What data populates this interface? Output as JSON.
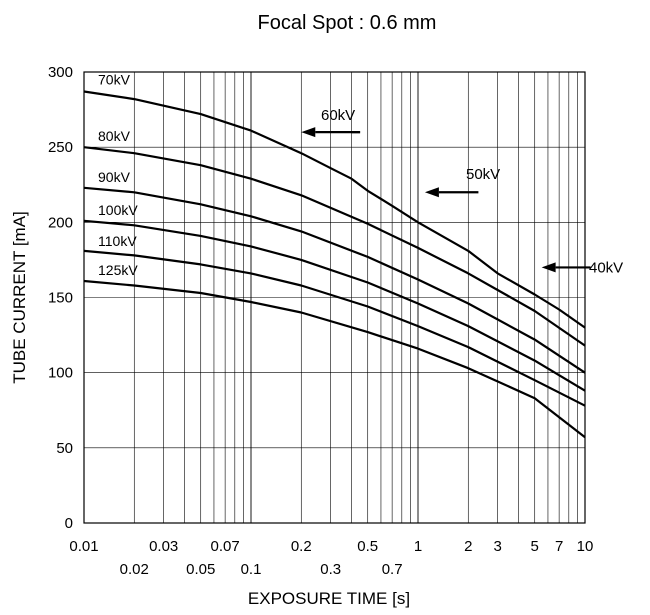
{
  "chart_data": {
    "type": "line",
    "title": "Focal Spot : 0.6 mm",
    "xlabel": "EXPOSURE TIME  [s]",
    "ylabel": "TUBE CURRENT [mA]",
    "x_scale": "log",
    "xlim": [
      0.01,
      10
    ],
    "ylim": [
      0,
      300
    ],
    "grid": true,
    "x_tick_labels_upper": [
      "0.01",
      "0.03",
      "0.07",
      "0.2",
      "0.5",
      "1",
      "2",
      "3",
      "5",
      "7",
      "10"
    ],
    "x_tick_labels_lower": [
      "0.02",
      "0.05",
      "0.1",
      "0.3",
      "0.7"
    ],
    "y_tick_labels": [
      "0",
      "50",
      "100",
      "150",
      "200",
      "250",
      "300"
    ],
    "series": [
      {
        "name": "70kV",
        "x": [
          0.01,
          0.02,
          0.05,
          0.1,
          0.2,
          0.3,
          0.4
        ],
        "y": [
          287,
          282,
          272,
          261,
          246,
          236,
          229
        ]
      },
      {
        "name": "60kV",
        "x": [
          0.4,
          0.5,
          0.7,
          1,
          2
        ],
        "y": [
          229,
          221,
          211,
          200,
          181
        ]
      },
      {
        "name": "50kV",
        "x": [
          2,
          3,
          5,
          7,
          10
        ],
        "y": [
          181,
          166,
          152,
          142,
          130
        ]
      },
      {
        "name": "40kV",
        "x": [
          10
        ],
        "y": [
          130
        ]
      },
      {
        "name": "80kV",
        "x": [
          0.01,
          0.02,
          0.05,
          0.1,
          0.2,
          0.5,
          1,
          2,
          5,
          10
        ],
        "y": [
          250,
          246,
          238,
          229,
          218,
          199,
          183,
          166,
          141,
          118
        ]
      },
      {
        "name": "90kV",
        "x": [
          0.01,
          0.02,
          0.05,
          0.1,
          0.2,
          0.5,
          1,
          2,
          5,
          10
        ],
        "y": [
          223,
          220,
          212,
          204,
          194,
          177,
          162,
          146,
          122,
          100
        ]
      },
      {
        "name": "100kV",
        "x": [
          0.01,
          0.02,
          0.05,
          0.1,
          0.2,
          0.5,
          1,
          2,
          5,
          10
        ],
        "y": [
          201,
          198,
          191,
          184,
          175,
          160,
          146,
          131,
          108,
          88
        ]
      },
      {
        "name": "110kV",
        "x": [
          0.01,
          0.02,
          0.05,
          0.1,
          0.2,
          0.5,
          1,
          2,
          5,
          10
        ],
        "y": [
          181,
          178,
          172,
          166,
          158,
          144,
          131,
          117,
          95,
          78
        ]
      },
      {
        "name": "125kV",
        "x": [
          0.01,
          0.02,
          0.05,
          0.1,
          0.2,
          0.5,
          1,
          2,
          5,
          10
        ],
        "y": [
          161,
          158,
          153,
          147,
          140,
          127,
          116,
          103,
          83,
          57
        ]
      }
    ],
    "annotations": [
      {
        "text": "60kV",
        "pointer_target": [
          0.2,
          260
        ]
      },
      {
        "text": "50kV",
        "pointer_target": [
          1.1,
          220
        ]
      },
      {
        "text": "40kV",
        "pointer_target": [
          5.5,
          170
        ]
      }
    ]
  }
}
